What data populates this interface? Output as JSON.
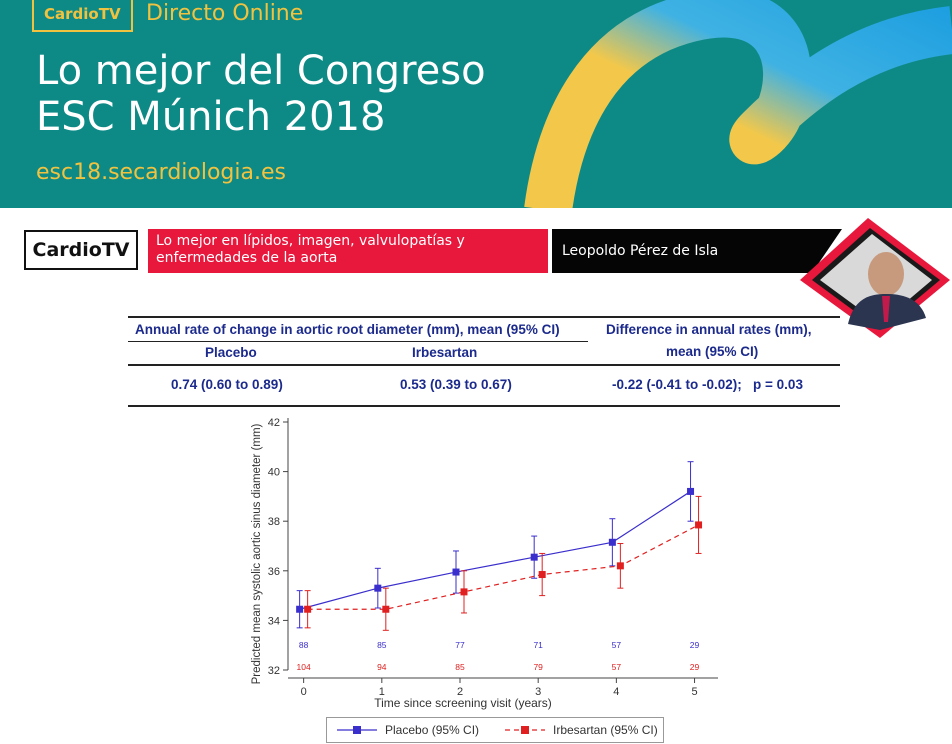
{
  "banner": {
    "badge": "CardioTV",
    "subtitle": "Directo Online",
    "title_line1": "Lo mejor del Congreso",
    "title_line2": "ESC Múnich 2018",
    "website": "esc18.secardiologia.es"
  },
  "presenter": {
    "brand": "CardioTV",
    "topic": "Lo mejor en lípidos, imagen, valvulopatías y enfermedades de la aorta",
    "speaker": "Leopoldo Pérez de Isla"
  },
  "table": {
    "header_left": "Annual rate of change in aortic root diameter (mm), mean (95% CI)",
    "header_right_line1": "Difference in annual rates (mm),",
    "header_right_line2": "mean (95% CI)",
    "col_placebo": "Placebo",
    "col_irbesartan": "Irbesartan",
    "val_placebo": "0.74 (0.60 to 0.89)",
    "val_irbesartan": "0.53 (0.39 to 0.67)",
    "val_difference": "-0.22 (-0.41 to -0.02);   p = 0.03"
  },
  "chart_data": {
    "type": "line",
    "xlabel": "Time since screening visit (years)",
    "ylabel": "Predicted mean systolic aortic sinus diameter (mm)",
    "xlim": [
      -0.2,
      5.3
    ],
    "ylim": [
      32,
      42
    ],
    "x_ticks": [
      0,
      1,
      2,
      3,
      4,
      5
    ],
    "y_ticks": [
      32,
      34,
      36,
      38,
      40,
      42
    ],
    "x": [
      0,
      1,
      2,
      3,
      4,
      5
    ],
    "series": [
      {
        "name": "Placebo (95% CI)",
        "color": "#3a2ecc",
        "line_style": "solid",
        "values": [
          34.45,
          35.3,
          35.95,
          36.55,
          37.15,
          39.2
        ],
        "ci_low": [
          33.7,
          34.5,
          35.1,
          35.7,
          36.2,
          38.0
        ],
        "ci_high": [
          35.2,
          36.1,
          36.8,
          37.4,
          38.1,
          40.4
        ],
        "n_at_risk": [
          "88",
          "85",
          "77",
          "71",
          "57",
          "29"
        ]
      },
      {
        "name": "Irbesartan (95% CI)",
        "color": "#e02020",
        "line_style": "dashed",
        "values": [
          34.45,
          34.45,
          35.15,
          35.85,
          36.2,
          37.85
        ],
        "ci_low": [
          33.7,
          33.6,
          34.3,
          35.0,
          35.3,
          36.7
        ],
        "ci_high": [
          35.2,
          35.3,
          36.0,
          36.7,
          37.1,
          39.0
        ],
        "n_at_risk": [
          "104",
          "94",
          "85",
          "79",
          "57",
          "29"
        ]
      }
    ],
    "grid": false,
    "legend_position": "bottom"
  }
}
